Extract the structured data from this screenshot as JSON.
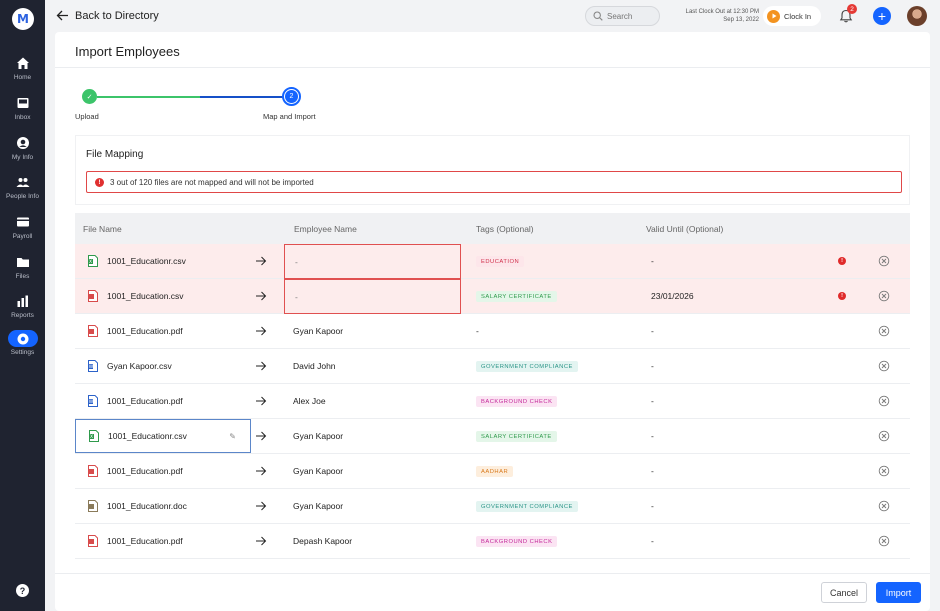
{
  "app": {
    "logo_letter": "M"
  },
  "sidebar": {
    "items": [
      {
        "label": "Home",
        "icon": "home-icon"
      },
      {
        "label": "Inbox",
        "icon": "inbox-icon"
      },
      {
        "label": "My Info",
        "icon": "user-circle-icon"
      },
      {
        "label": "People Info",
        "icon": "people-icon"
      },
      {
        "label": "Payroll",
        "icon": "payroll-icon"
      },
      {
        "label": "Files",
        "icon": "folder-icon"
      },
      {
        "label": "Reports",
        "icon": "bar-chart-icon"
      },
      {
        "label": "Settings",
        "icon": "gear-icon",
        "active": true
      }
    ],
    "help_label": "?"
  },
  "topbar": {
    "back_label": "Back to Directory",
    "search_placeholder": "Search",
    "last_clock_line1": "Last Clock Out at 12:30 PM",
    "last_clock_line2": "Sep 13, 2022",
    "clock_in_label": "Clock In",
    "notification_count": "2",
    "add_label": "+"
  },
  "page": {
    "title": "Import Employees"
  },
  "stepper": {
    "step1": {
      "label": "Upload",
      "mark": "✓",
      "status": "done"
    },
    "step2": {
      "label": "Map and Import",
      "number": "2",
      "status": "active"
    }
  },
  "mapping": {
    "title": "File Mapping",
    "alert_icon": "!",
    "alert_text": "3 out of 120 files are not mapped and will not be imported"
  },
  "table": {
    "headers": {
      "file": "File Name",
      "employee": "Employee Name",
      "tags": "Tags (Optional)",
      "valid": "Valid Until (Optional)"
    },
    "rows": [
      {
        "file": "1001_Educationr.csv",
        "type": "excel",
        "employee": "-",
        "tag": "EDUCATION",
        "tag_color": "pink",
        "valid": "-",
        "error": true
      },
      {
        "file": "1001_Education.csv",
        "type": "pdf",
        "employee": "-",
        "tag": "SALARY CERTIFICATE",
        "tag_color": "green",
        "valid": "23/01/2026",
        "error": true
      },
      {
        "file": "1001_Education.pdf",
        "type": "pdf",
        "employee": "Gyan Kapoor",
        "tag": "",
        "tag_text": "-",
        "valid": "-",
        "error": false
      },
      {
        "file": "Gyan Kapoor.csv",
        "type": "word",
        "employee": "David John",
        "tag": "GOVERNMENT COMPLIANCE",
        "tag_color": "teal",
        "valid": "-",
        "error": false
      },
      {
        "file": "1001_Education.pdf",
        "type": "word",
        "employee": "Alex Joe",
        "tag": "BACKGROUND CHECK",
        "tag_color": "magenta",
        "valid": "-",
        "error": false
      },
      {
        "file": "1001_Educationr.csv",
        "type": "excel",
        "employee": "Gyan Kapoor",
        "tag": "SALARY CERTIFICATE",
        "tag_color": "green",
        "valid": "-",
        "error": false,
        "selected": true
      },
      {
        "file": "1001_Education.pdf",
        "type": "pdf",
        "employee": "Gyan Kapoor",
        "tag": "AADHAR",
        "tag_color": "orange",
        "valid": "-",
        "error": false
      },
      {
        "file": "1001_Educationr.doc",
        "type": "doc",
        "employee": "Gyan Kapoor",
        "tag": "GOVERNMENT COMPLIANCE",
        "tag_color": "teal",
        "valid": "-",
        "error": false
      },
      {
        "file": "1001_Education.pdf",
        "type": "pdf",
        "employee": "Depash Kapoor",
        "tag": "BACKGROUND CHECK",
        "tag_color": "magenta",
        "valid": "-",
        "error": false
      }
    ]
  },
  "footer": {
    "cancel_label": "Cancel",
    "import_label": "Import"
  },
  "colors": {
    "primary": "#1464ff",
    "success": "#3cc46a",
    "error": "#e03030",
    "pink": "#fde6ea",
    "pink_text": "#d0304a",
    "green": "#e4f6e9",
    "green_text": "#2f9a4c",
    "teal": "#e3f4f1",
    "teal_text": "#2a9486",
    "magenta": "#fbe4f3",
    "magenta_text": "#c4289a",
    "orange": "#fdeedd",
    "orange_text": "#d97a1d"
  }
}
